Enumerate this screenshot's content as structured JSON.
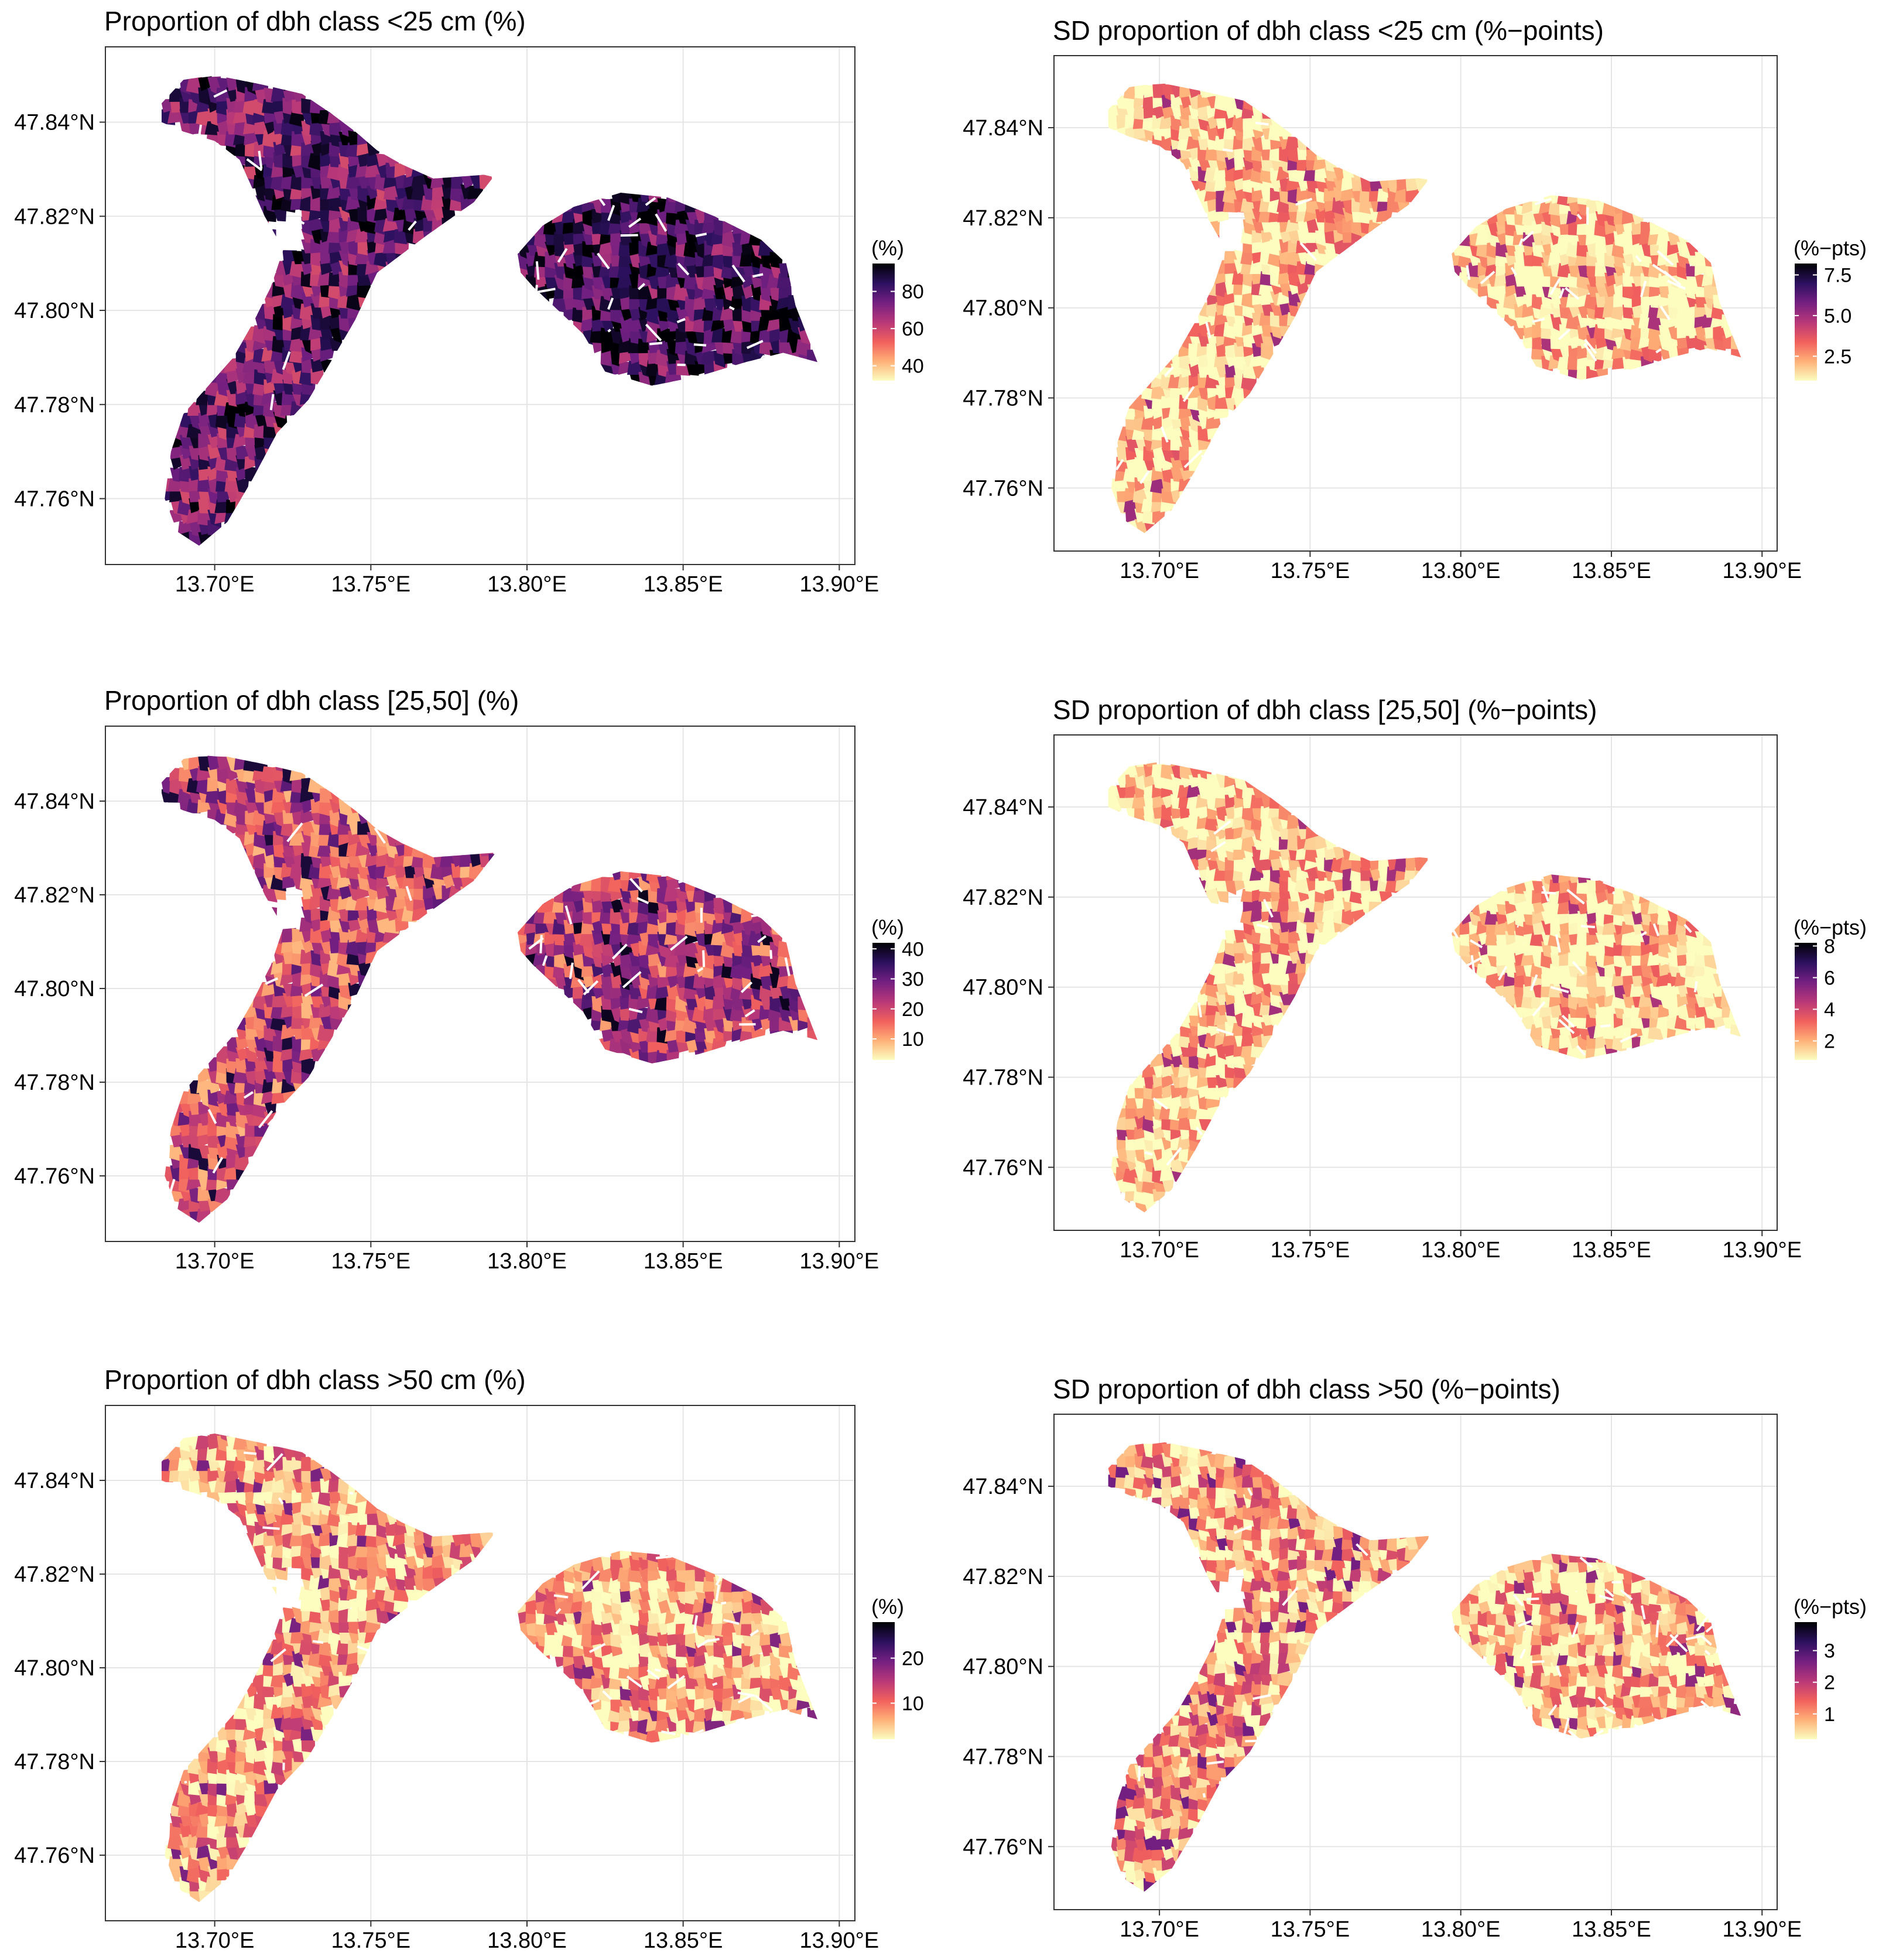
{
  "figure": {
    "x_tick_labels": [
      "13.70°E",
      "13.75°E",
      "13.80°E",
      "13.85°E",
      "13.90°E"
    ],
    "y_tick_labels": [
      "47.76°N",
      "47.78°N",
      "47.80°N",
      "47.82°N",
      "47.84°N"
    ],
    "x_ticks": [
      13.7,
      13.75,
      13.8,
      13.85,
      13.9
    ],
    "y_ticks": [
      47.76,
      47.78,
      47.8,
      47.82,
      47.84
    ],
    "xlim": [
      13.665,
      13.905
    ],
    "ylim": [
      47.746,
      47.856
    ],
    "palette": [
      "#000004",
      "#2c115f",
      "#721f81",
      "#b73779",
      "#f1605d",
      "#feaf77",
      "#fcfdbf"
    ]
  },
  "panels": [
    {
      "id": "p1",
      "title": "Proportion of dbh class <25 cm (%)",
      "legend_title": "(%)",
      "legend_labels": [
        "80",
        "60",
        "40"
      ],
      "legend_values": [
        80,
        60,
        40
      ],
      "range": [
        32,
        95
      ],
      "west_level": 0.72,
      "east_level": 0.8
    },
    {
      "id": "p2",
      "title": "SD proportion of dbh class <25 cm  (%−points)",
      "legend_title": "(%−pts)",
      "legend_labels": [
        "7.5",
        "5.0",
        "2.5"
      ],
      "legend_values": [
        7.5,
        5.0,
        2.5
      ],
      "range": [
        1.0,
        8.2
      ],
      "west_level": 0.12,
      "east_level": 0.08
    },
    {
      "id": "p3",
      "title": "Proportion of dbh class [25,50]  (%)",
      "legend_title": "(%)",
      "legend_labels": [
        "40",
        "30",
        "20",
        "10"
      ],
      "legend_values": [
        40,
        30,
        20,
        10
      ],
      "range": [
        3,
        42
      ],
      "west_level": 0.45,
      "east_level": 0.5
    },
    {
      "id": "p4",
      "title": "SD proportion of dbh class [25,50] (%−points)",
      "legend_title": "(%−pts)",
      "legend_labels": [
        "8",
        "6",
        "4",
        "2"
      ],
      "legend_values": [
        8,
        6,
        4,
        2
      ],
      "range": [
        0.8,
        8.2
      ],
      "west_level": 0.1,
      "east_level": 0.08
    },
    {
      "id": "p5",
      "title": "Proportion of dbh class >50 cm (%)",
      "legend_title": "(%)",
      "legend_labels": [
        "20",
        "10"
      ],
      "legend_values": [
        20,
        10
      ],
      "range": [
        2,
        28
      ],
      "west_level": 0.2,
      "east_level": 0.18
    },
    {
      "id": "p6",
      "title": "SD proportion of dbh class >50 (%−points)",
      "legend_title": "(%−pts)",
      "legend_labels": [
        "3",
        "2",
        "1"
      ],
      "legend_values": [
        3,
        2,
        1
      ],
      "range": [
        0.2,
        3.9
      ],
      "west_level": 0.22,
      "east_level": 0.15
    }
  ]
}
